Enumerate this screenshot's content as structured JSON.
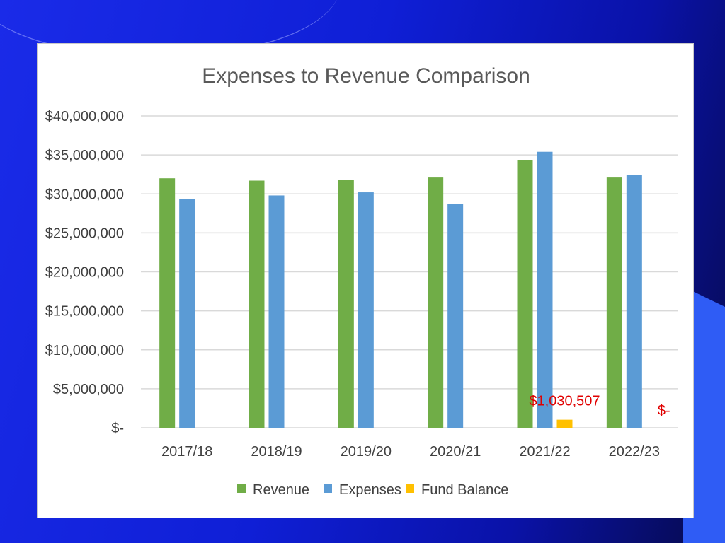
{
  "chart_data": {
    "type": "bar",
    "title": "Expenses to Revenue Comparison",
    "categories": [
      "2017/18",
      "2018/19",
      "2019/20",
      "2020/21",
      "2021/22",
      "2022/23"
    ],
    "series": [
      {
        "name": "Revenue",
        "color": "#70ad47",
        "values": [
          32000000,
          31700000,
          31800000,
          32100000,
          34300000,
          32100000
        ]
      },
      {
        "name": "Expenses",
        "color": "#5b9bd5",
        "values": [
          29300000,
          29800000,
          30200000,
          28700000,
          35400000,
          32400000
        ]
      },
      {
        "name": "Fund Balance",
        "color": "#ffc000",
        "values": [
          0,
          0,
          0,
          0,
          1030507,
          0
        ]
      }
    ],
    "ylim": [
      0,
      40000000
    ],
    "y_ticks": [
      {
        "value": 0,
        "label": "$-"
      },
      {
        "value": 5000000,
        "label": "$5,000,000"
      },
      {
        "value": 10000000,
        "label": "$10,000,000"
      },
      {
        "value": 15000000,
        "label": "$15,000,000"
      },
      {
        "value": 20000000,
        "label": "$20,000,000"
      },
      {
        "value": 25000000,
        "label": "$25,000,000"
      },
      {
        "value": 30000000,
        "label": "$30,000,000"
      },
      {
        "value": 35000000,
        "label": "$35,000,000"
      },
      {
        "value": 40000000,
        "label": "$40,000,000"
      }
    ],
    "data_labels": [
      {
        "series": "Fund Balance",
        "category": "2021/22",
        "text": "$1,030,507",
        "color": "#e00000"
      },
      {
        "series": "Fund Balance",
        "category": "2022/23",
        "text": "$-",
        "color": "#e00000"
      }
    ],
    "grid": true,
    "legend_position": "bottom"
  }
}
